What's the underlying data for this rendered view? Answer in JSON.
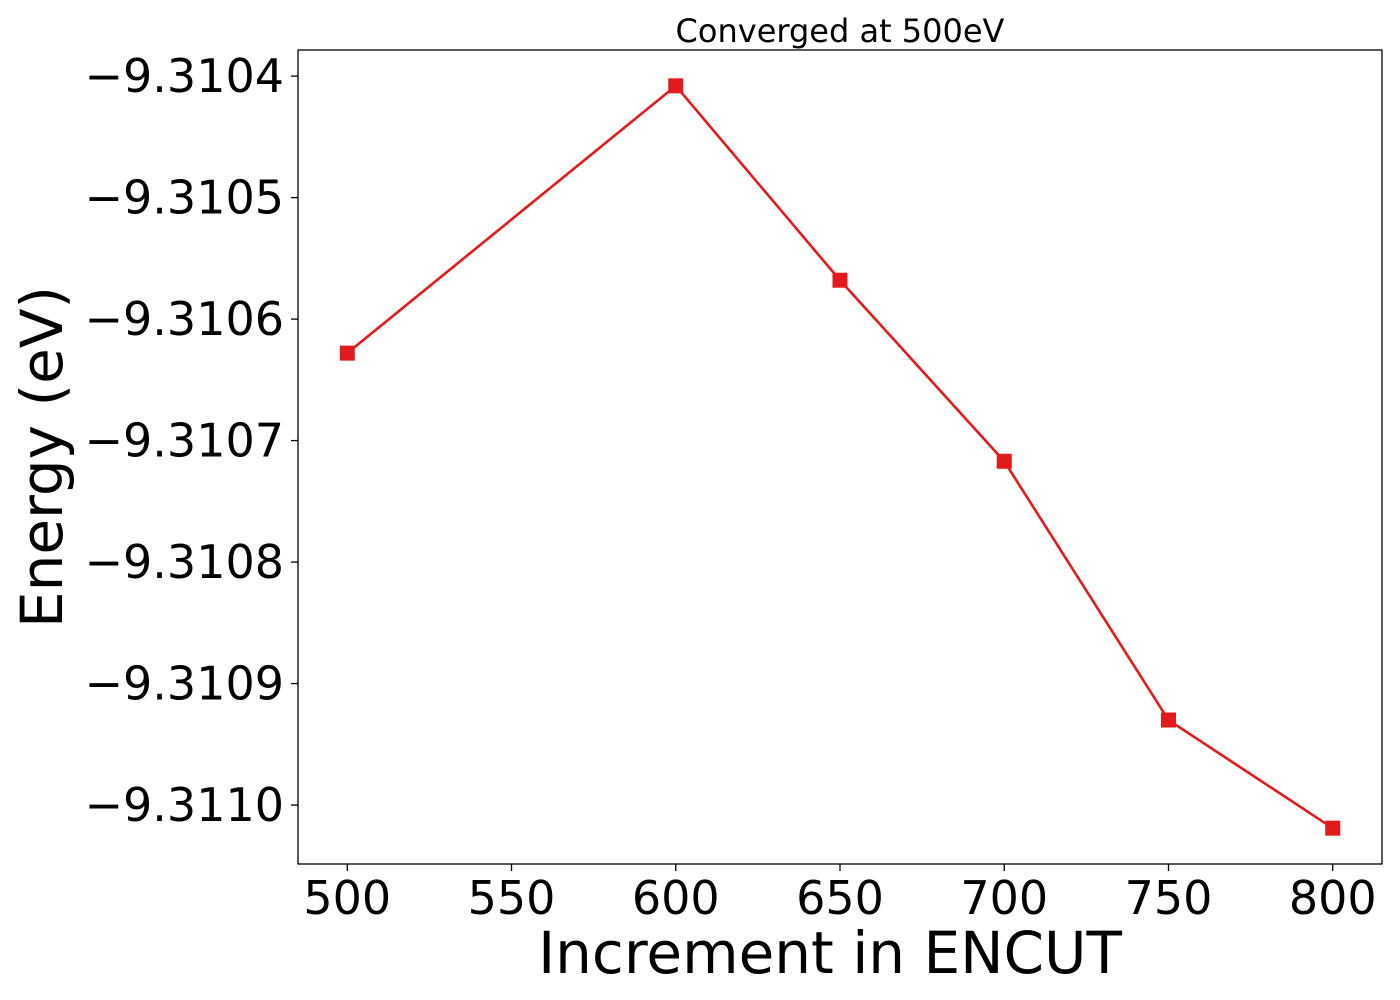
{
  "chart_data": {
    "type": "line",
    "title": "Converged at 500eV",
    "xlabel": "Increment in ENCUT",
    "ylabel": "Energy (eV)",
    "x": [
      500,
      600,
      650,
      700,
      750,
      800
    ],
    "series": [
      {
        "values": [
          -9.310628,
          -9.310408,
          -9.310568,
          -9.310717,
          -9.31093,
          -9.311019
        ],
        "color": "#e31a1c",
        "marker": "square"
      }
    ],
    "xticks": [
      500,
      550,
      600,
      650,
      700,
      750,
      800
    ],
    "xtick_labels": [
      "500",
      "550",
      "600",
      "650",
      "700",
      "750",
      "800"
    ],
    "yticks": [
      -9.3104,
      -9.3105,
      -9.3106,
      -9.3107,
      -9.3108,
      -9.3109,
      -9.311
    ],
    "ytick_labels": [
      "−9.3104",
      "−9.3105",
      "−9.3106",
      "−9.3107",
      "−9.3108",
      "−9.3109",
      "−9.3110"
    ],
    "xlim": [
      485,
      815
    ],
    "ylim": [
      -9.3110485,
      -9.3103785
    ],
    "grid": false
  }
}
